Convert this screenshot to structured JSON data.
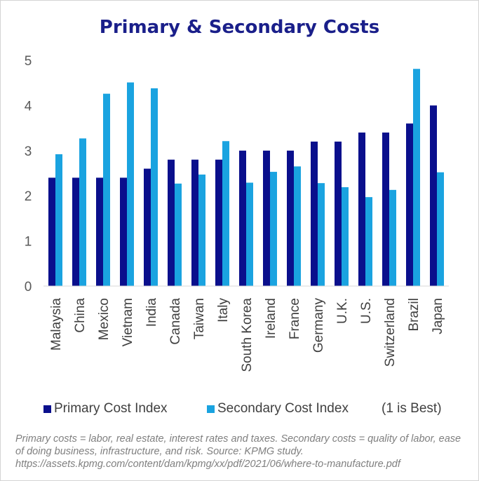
{
  "colors": {
    "primary": "#0a0f8c",
    "secondary": "#1aa3e0",
    "title": "#1a1f8a",
    "footnote": "#7f7f7f"
  },
  "chart_data": {
    "type": "bar",
    "title": "Primary & Secondary Costs",
    "xlabel": "",
    "ylabel": "",
    "ylim": [
      0,
      5
    ],
    "yticks": [
      "0",
      "1",
      "2",
      "3",
      "4",
      "5"
    ],
    "grid": false,
    "legend_position": "bottom",
    "categories": [
      "Malaysia",
      "China",
      "Mexico",
      "Vietnam",
      "India",
      "Canada",
      "Taiwan",
      "Italy",
      "South Korea",
      "Ireland",
      "France",
      "Germany",
      "U.K.",
      "U.S.",
      "Switzerland",
      "Brazil",
      "Japan"
    ],
    "series": [
      {
        "name": "Primary Cost Index",
        "color": "#0a0f8c",
        "values": [
          2.4,
          2.4,
          2.4,
          2.4,
          2.6,
          2.8,
          2.8,
          2.8,
          3.0,
          3.0,
          3.0,
          3.2,
          3.2,
          3.4,
          3.4,
          3.6,
          4.0
        ]
      },
      {
        "name": "Secondary Cost Index",
        "color": "#1aa3e0",
        "values": [
          2.92,
          3.27,
          4.26,
          4.51,
          4.38,
          2.27,
          2.47,
          3.21,
          2.29,
          2.53,
          2.65,
          2.28,
          2.19,
          1.97,
          2.13,
          4.81,
          2.52
        ]
      }
    ],
    "legend_note": "(1 is Best)"
  },
  "footnote": "Primary costs = labor, real estate, interest rates and taxes. Secondary costs = quality of labor, ease of doing business, infrastructure, and risk. Source: KPMG study. https://assets.kpmg.com/content/dam/kpmg/xx/pdf/2021/06/where-to-manufacture.pdf"
}
